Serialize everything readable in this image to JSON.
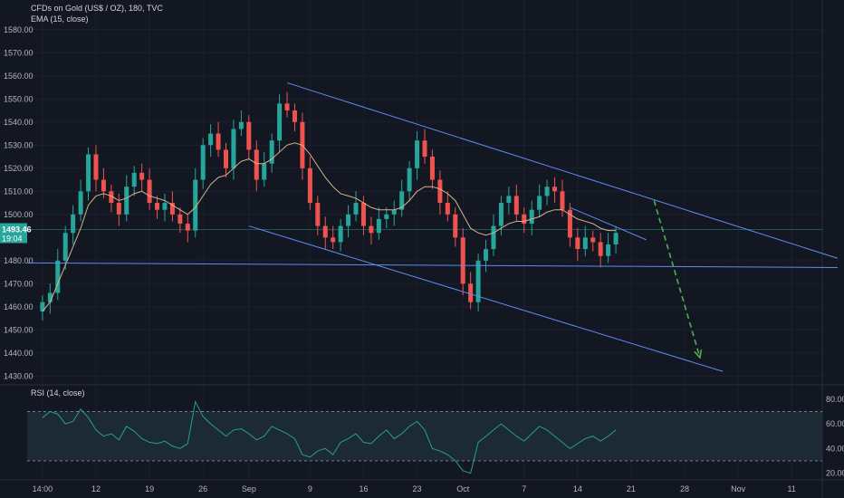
{
  "header": {
    "symbol": "CFDs on Gold (US$ / OZ), 180, TVC",
    "indicator": "EMA (15, close)"
  },
  "rsi_header": {
    "label": "RSI (14, close)"
  },
  "price_badge": {
    "price": "1493.46",
    "countdown": "19:04"
  },
  "colors": {
    "background": "#131722",
    "up": "#26a69a",
    "down": "#ef5350",
    "ema": "#d9b38c",
    "trendline": "#5b8def",
    "projection": "#4caf50",
    "rsi_line": "#2a9d8f",
    "rsi_band": "#1b2a34",
    "badge": "#26a69a"
  },
  "chart_data": [
    {
      "type": "candlestick",
      "title": "CFDs on Gold (US$ / OZ), 180, TVC",
      "y_ticks": [
        1580,
        1570,
        1560,
        1550,
        1540,
        1530,
        1520,
        1510,
        1500,
        1480,
        1470,
        1460,
        1450,
        1440,
        1430
      ],
      "y_tick_labels": [
        "1580.00",
        "1570.00",
        "1560.00",
        "1550.00",
        "1540.00",
        "1530.00",
        "1520.00",
        "1510.00",
        "1500.00",
        "1480.00",
        "1470.00",
        "1460.00",
        "1450.00",
        "1440.00",
        "1430.00"
      ],
      "ylim": [
        1427,
        1585
      ],
      "x_tick_labels": [
        "14:00",
        "12",
        "19",
        "26",
        "Sep",
        "9",
        "16",
        "23",
        "Oct",
        "7",
        "14",
        "21",
        "28",
        "Nov",
        "11"
      ],
      "x_tick_days": [
        0,
        7,
        14,
        21,
        27,
        35,
        42,
        49,
        55,
        63,
        70,
        77,
        84,
        91,
        98
      ],
      "xlim_days": [
        -2,
        102
      ],
      "last_price": 1493.46,
      "series": [
        {
          "name": "EMA (15, close)",
          "key": "ema"
        }
      ],
      "close": [
        [
          0,
          1462
        ],
        [
          1,
          1466
        ],
        [
          2,
          1480
        ],
        [
          3,
          1492
        ],
        [
          4,
          1500
        ],
        [
          5,
          1510
        ],
        [
          6,
          1526
        ],
        [
          7,
          1515
        ],
        [
          8,
          1510
        ],
        [
          9,
          1505
        ],
        [
          10,
          1500
        ],
        [
          11,
          1512
        ],
        [
          12,
          1518
        ],
        [
          13,
          1515
        ],
        [
          14,
          1505
        ],
        [
          15,
          1502
        ],
        [
          16,
          1505
        ],
        [
          17,
          1500
        ],
        [
          18,
          1496
        ],
        [
          19,
          1493
        ],
        [
          20,
          1515
        ],
        [
          21,
          1530
        ],
        [
          22,
          1535
        ],
        [
          23,
          1528
        ],
        [
          24,
          1520
        ],
        [
          25,
          1537
        ],
        [
          26,
          1540
        ],
        [
          27,
          1528
        ],
        [
          28,
          1515
        ],
        [
          29,
          1522
        ],
        [
          30,
          1532
        ],
        [
          31,
          1548
        ],
        [
          32,
          1545
        ],
        [
          33,
          1540
        ],
        [
          34,
          1520
        ],
        [
          35,
          1505
        ],
        [
          36,
          1495
        ],
        [
          37,
          1490
        ],
        [
          38,
          1488
        ],
        [
          39,
          1495
        ],
        [
          40,
          1500
        ],
        [
          41,
          1505
        ],
        [
          42,
          1495
        ],
        [
          43,
          1492
        ],
        [
          44,
          1498
        ],
        [
          45,
          1500
        ],
        [
          46,
          1502
        ],
        [
          47,
          1510
        ],
        [
          48,
          1520
        ],
        [
          49,
          1532
        ],
        [
          50,
          1525
        ],
        [
          51,
          1515
        ],
        [
          52,
          1505
        ],
        [
          53,
          1500
        ],
        [
          54,
          1490
        ],
        [
          55,
          1470
        ],
        [
          56,
          1462
        ],
        [
          57,
          1480
        ],
        [
          58,
          1485
        ],
        [
          59,
          1495
        ],
        [
          60,
          1505
        ],
        [
          61,
          1508
        ],
        [
          62,
          1500
        ],
        [
          63,
          1496
        ],
        [
          64,
          1502
        ],
        [
          65,
          1508
        ],
        [
          66,
          1512
        ],
        [
          67,
          1510
        ],
        [
          68,
          1502
        ],
        [
          69,
          1490
        ],
        [
          70,
          1485
        ],
        [
          71,
          1490
        ],
        [
          72,
          1488
        ],
        [
          73,
          1482
        ],
        [
          74,
          1487
        ],
        [
          75,
          1492
        ]
      ],
      "ema": [
        [
          0,
          1458
        ],
        [
          1,
          1462
        ],
        [
          2,
          1470
        ],
        [
          3,
          1478
        ],
        [
          4,
          1486
        ],
        [
          5,
          1494
        ],
        [
          6,
          1504
        ],
        [
          7,
          1508
        ],
        [
          8,
          1509
        ],
        [
          9,
          1508
        ],
        [
          10,
          1506
        ],
        [
          11,
          1507
        ],
        [
          12,
          1509
        ],
        [
          13,
          1510
        ],
        [
          14,
          1508
        ],
        [
          15,
          1507
        ],
        [
          16,
          1506
        ],
        [
          17,
          1504
        ],
        [
          18,
          1502
        ],
        [
          19,
          1500
        ],
        [
          20,
          1503
        ],
        [
          21,
          1508
        ],
        [
          22,
          1513
        ],
        [
          23,
          1516
        ],
        [
          24,
          1517
        ],
        [
          25,
          1520
        ],
        [
          26,
          1523
        ],
        [
          27,
          1524
        ],
        [
          28,
          1522
        ],
        [
          29,
          1522
        ],
        [
          30,
          1524
        ],
        [
          31,
          1527
        ],
        [
          32,
          1530
        ],
        [
          33,
          1531
        ],
        [
          34,
          1530
        ],
        [
          35,
          1526
        ],
        [
          36,
          1521
        ],
        [
          37,
          1516
        ],
        [
          38,
          1512
        ],
        [
          39,
          1509
        ],
        [
          40,
          1508
        ],
        [
          41,
          1507
        ],
        [
          42,
          1505
        ],
        [
          43,
          1503
        ],
        [
          44,
          1502
        ],
        [
          45,
          1502
        ],
        [
          46,
          1502
        ],
        [
          47,
          1503
        ],
        [
          48,
          1506
        ],
        [
          49,
          1510
        ],
        [
          50,
          1512
        ],
        [
          51,
          1512
        ],
        [
          52,
          1511
        ],
        [
          53,
          1509
        ],
        [
          54,
          1506
        ],
        [
          55,
          1500
        ],
        [
          56,
          1494
        ],
        [
          57,
          1492
        ],
        [
          58,
          1491
        ],
        [
          59,
          1492
        ],
        [
          60,
          1494
        ],
        [
          61,
          1496
        ],
        [
          62,
          1497
        ],
        [
          63,
          1497
        ],
        [
          64,
          1498
        ],
        [
          65,
          1499
        ],
        [
          66,
          1501
        ],
        [
          67,
          1502
        ],
        [
          68,
          1502
        ],
        [
          69,
          1500
        ],
        [
          70,
          1498
        ],
        [
          71,
          1497
        ],
        [
          72,
          1496
        ],
        [
          73,
          1494
        ],
        [
          74,
          1493
        ],
        [
          75,
          1493
        ]
      ],
      "trendlines": [
        {
          "name": "channel-upper",
          "from": [
            32,
            1557
          ],
          "to": [
            104,
            1481
          ]
        },
        {
          "name": "channel-lower",
          "from": [
            27,
            1495
          ],
          "to": [
            89,
            1432
          ]
        },
        {
          "name": "horizontal-support",
          "from": [
            -2,
            1479
          ],
          "to": [
            104,
            1477
          ]
        },
        {
          "name": "wedge-top",
          "from": [
            69,
            1503
          ],
          "to": [
            79,
            1489
          ]
        },
        {
          "name": "projection-arrow",
          "dashed": true,
          "from": [
            80,
            1506
          ],
          "to": [
            86,
            1438
          ]
        }
      ]
    },
    {
      "type": "line",
      "title": "RSI (14, close)",
      "y_ticks": [
        80,
        60,
        40,
        20
      ],
      "y_tick_labels": [
        "80.00",
        "60.00",
        "40.00",
        "20.00"
      ],
      "ylim": [
        16,
        88
      ],
      "band": [
        30,
        70
      ],
      "values": [
        [
          0,
          65
        ],
        [
          1,
          70
        ],
        [
          2,
          68
        ],
        [
          3,
          60
        ],
        [
          4,
          62
        ],
        [
          5,
          72
        ],
        [
          6,
          65
        ],
        [
          7,
          55
        ],
        [
          8,
          50
        ],
        [
          9,
          52
        ],
        [
          10,
          47
        ],
        [
          11,
          58
        ],
        [
          12,
          54
        ],
        [
          13,
          48
        ],
        [
          14,
          45
        ],
        [
          15,
          44
        ],
        [
          16,
          46
        ],
        [
          17,
          42
        ],
        [
          18,
          40
        ],
        [
          19,
          44
        ],
        [
          20,
          78
        ],
        [
          21,
          66
        ],
        [
          22,
          60
        ],
        [
          23,
          55
        ],
        [
          24,
          50
        ],
        [
          25,
          55
        ],
        [
          26,
          56
        ],
        [
          27,
          52
        ],
        [
          28,
          47
        ],
        [
          29,
          50
        ],
        [
          30,
          58
        ],
        [
          31,
          55
        ],
        [
          32,
          52
        ],
        [
          33,
          48
        ],
        [
          34,
          35
        ],
        [
          35,
          33
        ],
        [
          36,
          38
        ],
        [
          37,
          40
        ],
        [
          38,
          35
        ],
        [
          39,
          45
        ],
        [
          40,
          48
        ],
        [
          41,
          52
        ],
        [
          42,
          45
        ],
        [
          43,
          44
        ],
        [
          44,
          50
        ],
        [
          45,
          55
        ],
        [
          46,
          48
        ],
        [
          47,
          52
        ],
        [
          48,
          58
        ],
        [
          49,
          62
        ],
        [
          50,
          55
        ],
        [
          51,
          40
        ],
        [
          52,
          38
        ],
        [
          53,
          35
        ],
        [
          54,
          30
        ],
        [
          55,
          22
        ],
        [
          56,
          20
        ],
        [
          57,
          45
        ],
        [
          58,
          50
        ],
        [
          59,
          55
        ],
        [
          60,
          60
        ],
        [
          61,
          55
        ],
        [
          62,
          50
        ],
        [
          63,
          46
        ],
        [
          64,
          52
        ],
        [
          65,
          58
        ],
        [
          66,
          55
        ],
        [
          67,
          50
        ],
        [
          68,
          45
        ],
        [
          69,
          40
        ],
        [
          70,
          44
        ],
        [
          71,
          48
        ],
        [
          72,
          50
        ],
        [
          73,
          46
        ],
        [
          74,
          50
        ],
        [
          75,
          55
        ]
      ]
    }
  ]
}
